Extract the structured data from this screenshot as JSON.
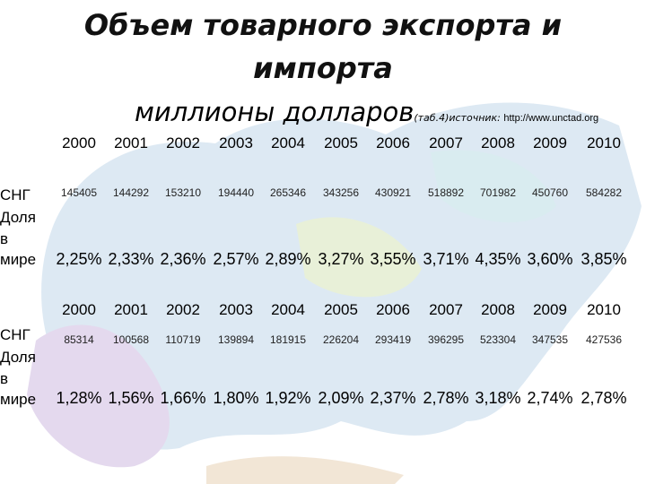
{
  "header": {
    "title": "Объем товарного экспорта и импорта",
    "subtitle": "миллионы долларов",
    "source_note": "(таб.4)источник: ",
    "source_link": "http://www.unctad.org"
  },
  "tables": [
    {
      "years": [
        "2000",
        "2001",
        "2002",
        "2003",
        "2004",
        "2005",
        "2006",
        "2007",
        "2008",
        "2009",
        "2010"
      ],
      "rows": [
        {
          "label": "СНГ",
          "cells": [
            "145405",
            "144292",
            "153210",
            "194440",
            "265346",
            "343256",
            "430921",
            "518892",
            "701982",
            "450760",
            "584282"
          ]
        },
        {
          "label": "Доля в мире",
          "cells": [
            "2,25%",
            "2,33%",
            "2,36%",
            "2,57%",
            "2,89%",
            "3,27%",
            "3,55%",
            "3,71%",
            "4,35%",
            "3,60%",
            "3,85%"
          ]
        }
      ]
    },
    {
      "years": [
        "2000",
        "2001",
        "2002",
        "2003",
        "2004",
        "2005",
        "2006",
        "2007",
        "2008",
        "2009",
        "2010"
      ],
      "rows": [
        {
          "label": "СНГ",
          "cells": [
            "85314",
            "100568",
            "110719",
            "139894",
            "181915",
            "226204",
            "293419",
            "396295",
            "523304",
            "347535",
            "427536"
          ]
        },
        {
          "label": "Доля в мире",
          "cells": [
            "1,28%",
            "1,56%",
            "1,66%",
            "1,80%",
            "1,92%",
            "2,09%",
            "2,37%",
            "2,78%",
            "3,18%",
            "2,74%",
            "2,78%"
          ]
        }
      ]
    }
  ]
}
